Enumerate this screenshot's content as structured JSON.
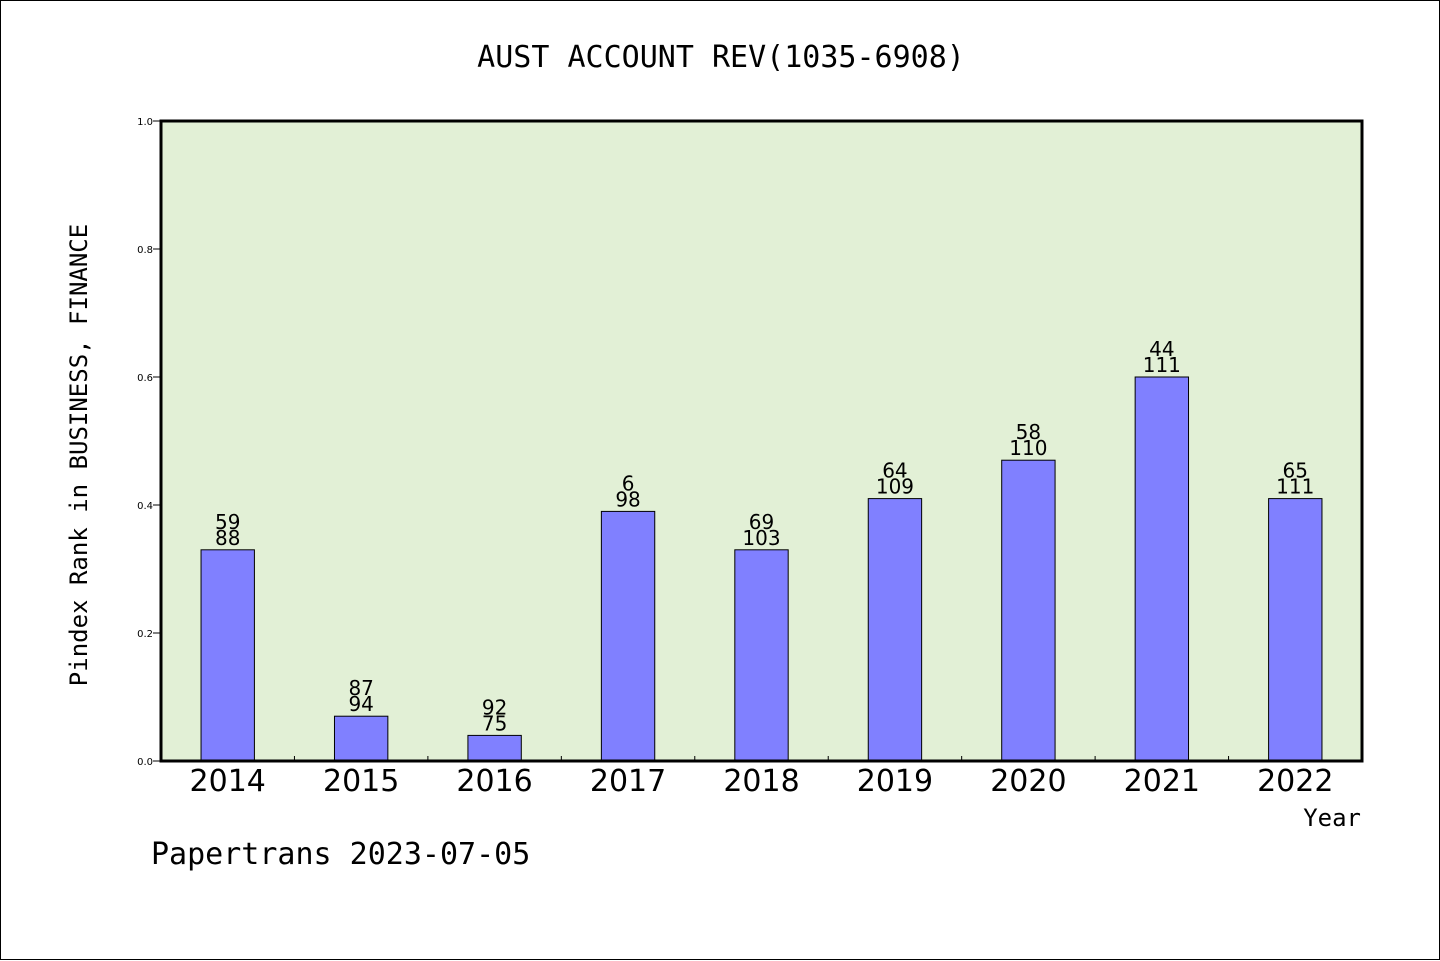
{
  "chart_data": {
    "type": "bar",
    "title": "AUST ACCOUNT REV(1035-6908)",
    "xlabel": "Year",
    "ylabel": "Pindex Rank in BUSINESS, FINANCE",
    "categories": [
      "2014",
      "2015",
      "2016",
      "2017",
      "2018",
      "2019",
      "2020",
      "2021",
      "2022"
    ],
    "values": [
      0.33,
      0.07,
      0.04,
      0.39,
      0.33,
      0.41,
      0.47,
      0.6,
      0.41
    ],
    "bar_labels_top": [
      "59",
      "87",
      "92",
      "6",
      "69",
      "64",
      "58",
      "44",
      "65"
    ],
    "bar_labels_bottom": [
      "88",
      "94",
      "75",
      "98",
      "103",
      "109",
      "110",
      "111",
      "111"
    ],
    "ylim": [
      0,
      1.0
    ],
    "yticks": [
      "0.0",
      "0.2",
      "0.4",
      "0.6",
      "0.8",
      "1.0"
    ],
    "grid": false,
    "legend": "none",
    "colors": {
      "bar_fill": "#8080ff",
      "plot_background": "#e2f0d6",
      "axis": "#000000"
    }
  },
  "footer": {
    "credit": "Papertrans 2023-07-05"
  }
}
